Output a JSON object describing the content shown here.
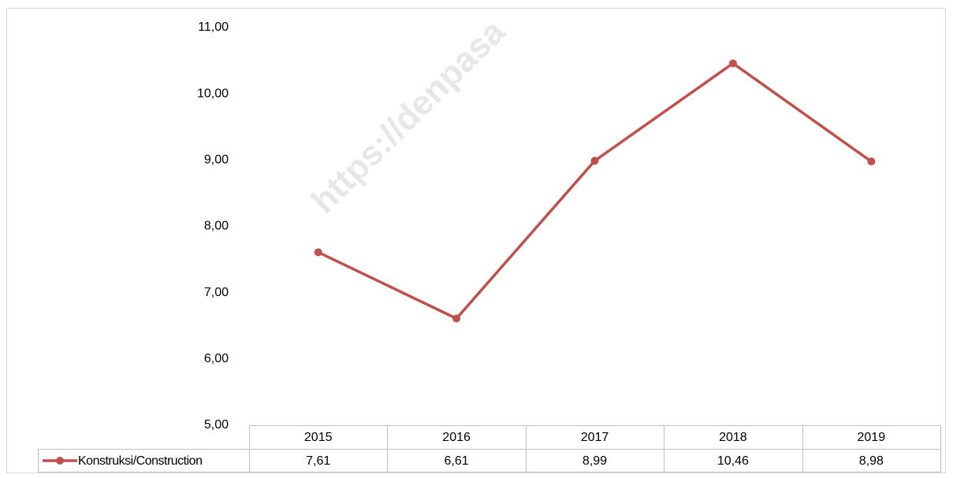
{
  "chart_data": {
    "type": "line",
    "watermark": "https://denpasa",
    "categories": [
      "2015",
      "2016",
      "2017",
      "2018",
      "2019"
    ],
    "series": [
      {
        "name": "Konstruksi/Construction",
        "color": "#c0504d",
        "values": [
          7.61,
          6.61,
          8.99,
          10.46,
          8.98
        ],
        "value_labels": [
          "7,61",
          "6,61",
          "8,99",
          "10,46",
          "8,98"
        ]
      }
    ],
    "ylim": [
      5,
      11
    ],
    "yticks": [
      {
        "value": 5,
        "label": "5,00"
      },
      {
        "value": 6,
        "label": "6,00"
      },
      {
        "value": 7,
        "label": "7,00"
      },
      {
        "value": 8,
        "label": "8,00"
      },
      {
        "value": 9,
        "label": "9,00"
      },
      {
        "value": 10,
        "label": "10,00"
      },
      {
        "value": 11,
        "label": "11,00"
      }
    ],
    "grid": false
  }
}
